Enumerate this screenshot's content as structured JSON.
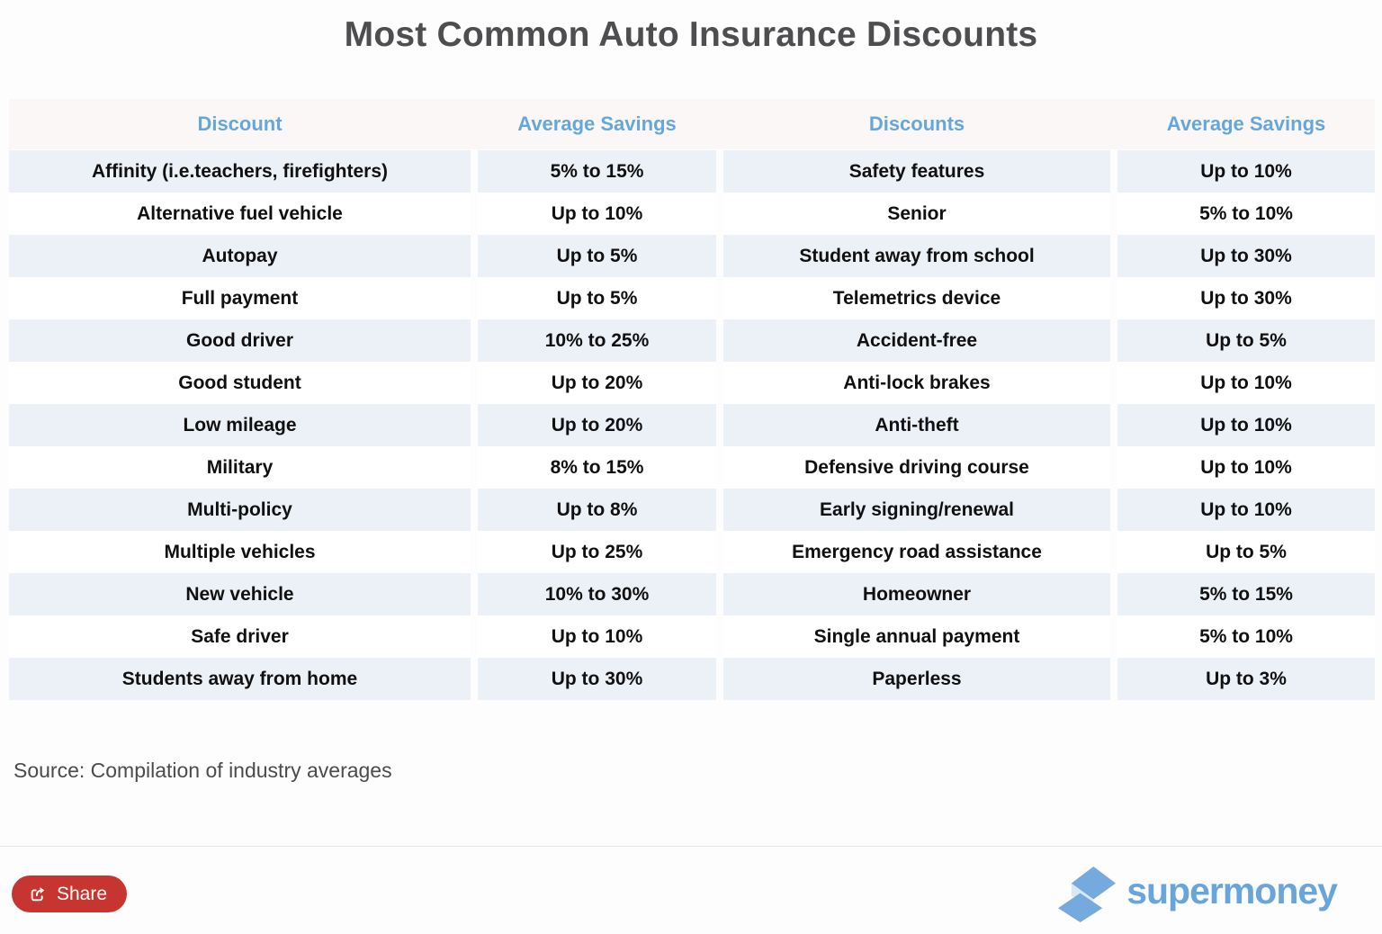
{
  "title": "Most Common Auto Insurance Discounts",
  "table": {
    "headers": [
      "Discount",
      "Average Savings",
      "Discounts",
      "Average Savings"
    ],
    "rows": [
      [
        "Affinity (i.e.teachers, firefighters)",
        "5% to 15%",
        "Safety features",
        "Up to 10%"
      ],
      [
        "Alternative fuel vehicle",
        "Up to 10%",
        "Senior",
        "5% to 10%"
      ],
      [
        "Autopay",
        "Up to 5%",
        "Student away from school",
        "Up to 30%"
      ],
      [
        "Full payment",
        "Up to 5%",
        "Telemetrics device",
        "Up to 30%"
      ],
      [
        "Good driver",
        "10% to 25%",
        "Accident-free",
        "Up to 5%"
      ],
      [
        "Good student",
        "Up to 20%",
        "Anti-lock brakes",
        "Up to 10%"
      ],
      [
        "Low mileage",
        "Up to 20%",
        "Anti-theft",
        "Up to 10%"
      ],
      [
        "Military",
        "8% to 15%",
        "Defensive driving course",
        "Up to 10%"
      ],
      [
        "Multi-policy",
        "Up to 8%",
        "Early signing/renewal",
        "Up to 10%"
      ],
      [
        "Multiple vehicles",
        "Up to 25%",
        "Emergency road assistance",
        "Up to 5%"
      ],
      [
        "New vehicle",
        "10% to 30%",
        "Homeowner",
        "5% to 15%"
      ],
      [
        "Safe driver",
        "Up to 10%",
        "Single annual payment",
        "5% to 10%"
      ],
      [
        "Students away from home",
        "Up to 30%",
        "Paperless",
        "Up to 3%"
      ]
    ]
  },
  "chart_data": {
    "type": "table",
    "title": "Most Common Auto Insurance Discounts",
    "columns": [
      "Discount",
      "Average Savings",
      "Discounts",
      "Average Savings"
    ],
    "rows": [
      [
        "Affinity (i.e.teachers, firefighters)",
        "5% to 15%",
        "Safety features",
        "Up to 10%"
      ],
      [
        "Alternative fuel vehicle",
        "Up to 10%",
        "Senior",
        "5% to 10%"
      ],
      [
        "Autopay",
        "Up to 5%",
        "Student away from school",
        "Up to 30%"
      ],
      [
        "Full payment",
        "Up to 5%",
        "Telemetrics device",
        "Up to 30%"
      ],
      [
        "Good driver",
        "10% to 25%",
        "Accident-free",
        "Up to 5%"
      ],
      [
        "Good student",
        "Up to 20%",
        "Anti-lock brakes",
        "Up to 10%"
      ],
      [
        "Low mileage",
        "Up to 20%",
        "Anti-theft",
        "Up to 10%"
      ],
      [
        "Military",
        "8% to 15%",
        "Defensive driving course",
        "Up to 10%"
      ],
      [
        "Multi-policy",
        "Up to 8%",
        "Early signing/renewal",
        "Up to 10%"
      ],
      [
        "Multiple vehicles",
        "Up to 25%",
        "Emergency road assistance",
        "Up to 5%"
      ],
      [
        "New vehicle",
        "10% to 30%",
        "Homeowner",
        "5% to 15%"
      ],
      [
        "Safe driver",
        "Up to 10%",
        "Single annual payment",
        "5% to 10%"
      ],
      [
        "Students away from home",
        "Up to 30%",
        "Paperless",
        "Up to 3%"
      ]
    ],
    "layout": {
      "zebra_striping": true,
      "striped_row_color": "#ecf1f7",
      "header_bg_color": "#fcf7f7",
      "header_text_color": "#64a7db"
    }
  },
  "source": "Source: Compilation of industry averages",
  "share": {
    "label": "Share"
  },
  "logo": {
    "text": "supermoney"
  },
  "colors": {
    "title_text": "#4e4e50",
    "header_text": "#64a7db",
    "header_bg": "#fcf7f7",
    "row_shaded_bg": "#ecf1f7",
    "cell_text": "#101010",
    "source_text": "#4b4b4b",
    "share_button_bg": "#c73530",
    "logo_blue": "#68a5db",
    "logo_icon_blue": "#74aadd",
    "logo_icon_light": "#dbe7f5"
  }
}
